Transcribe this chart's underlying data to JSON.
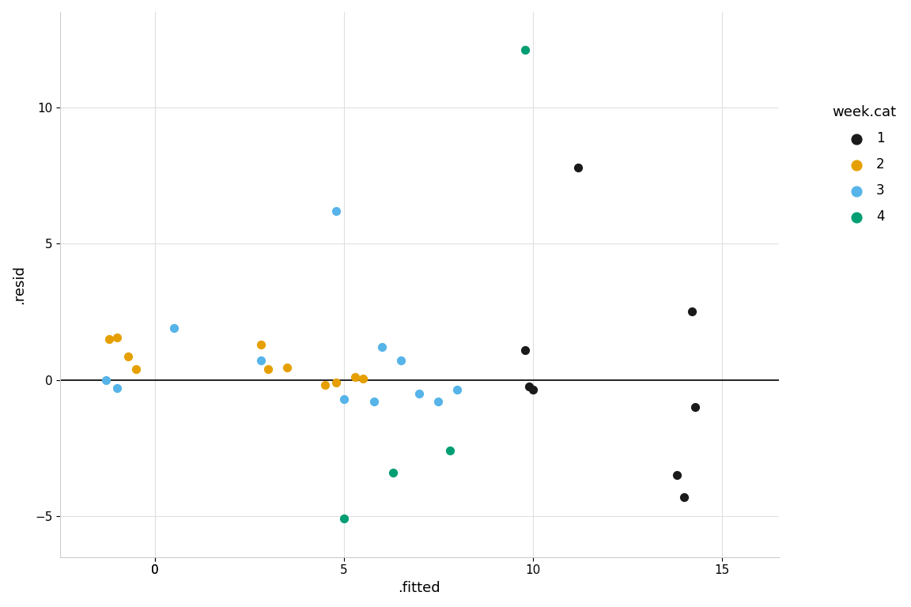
{
  "title": "",
  "xlabel": ".fitted",
  "ylabel": ".resid",
  "legend_title": "week.cat",
  "xlim": [
    -2,
    16
  ],
  "ylim": [
    -6,
    13
  ],
  "xticks": [
    0,
    0,
    5,
    10,
    15
  ],
  "yticks": [
    -5,
    0,
    5,
    10
  ],
  "background_color": "#ffffff",
  "grid_color": "#e0e0e0",
  "hline_y": 0,
  "categories": {
    "1": {
      "color": "#1a1a1a",
      "fitted": [
        9.8,
        9.9,
        10.0,
        11.2,
        13.8,
        14.0,
        14.2,
        14.3
      ],
      "resid": [
        1.1,
        -0.25,
        -0.35,
        7.8,
        -3.5,
        -4.3,
        2.5,
        -1.0
      ]
    },
    "2": {
      "color": "#E69F00",
      "fitted": [
        -1.2,
        -1.0,
        -0.7,
        -0.5,
        2.8,
        3.0,
        3.5,
        4.5,
        4.8,
        5.3,
        5.5
      ],
      "resid": [
        1.5,
        1.55,
        0.85,
        0.4,
        1.3,
        0.4,
        0.45,
        -0.2,
        -0.1,
        0.1,
        0.05
      ]
    },
    "3": {
      "color": "#56B4E9",
      "fitted": [
        -1.3,
        -1.0,
        0.5,
        2.8,
        4.8,
        5.0,
        5.8,
        6.0,
        6.5,
        7.0,
        7.5,
        8.0
      ],
      "resid": [
        0.0,
        -0.3,
        1.9,
        0.7,
        6.2,
        -0.7,
        -0.8,
        1.2,
        0.7,
        -0.5,
        -0.8,
        -0.35
      ]
    },
    "4": {
      "color": "#009E73",
      "fitted": [
        5.0,
        6.3,
        7.8,
        9.8
      ],
      "resid": [
        -5.1,
        -3.4,
        -2.6,
        12.1
      ]
    }
  },
  "point_size": 50,
  "legend_pos": "right"
}
